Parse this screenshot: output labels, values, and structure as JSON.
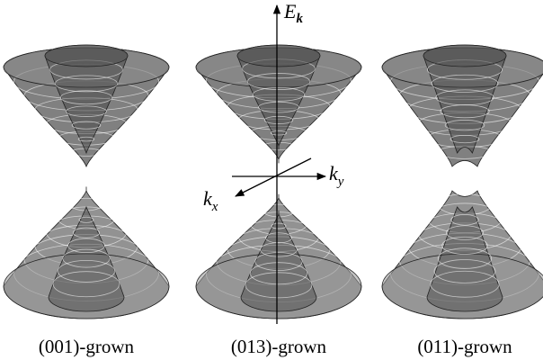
{
  "axes": {
    "energy": {
      "symbol": "E",
      "subscript": "k"
    },
    "ky": {
      "symbol": "k",
      "subscript": "y"
    },
    "kx": {
      "symbol": "k",
      "subscript": "x"
    }
  },
  "panels": [
    {
      "caption": "(001)-grown"
    },
    {
      "caption": "(013)-grown"
    },
    {
      "caption": "(011)-grown"
    }
  ]
}
